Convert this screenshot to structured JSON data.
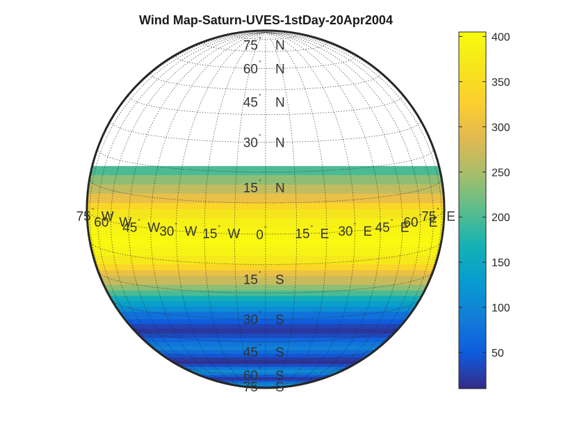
{
  "map": {
    "title": "Wind Map-Saturn-UVES-1stDay-20Apr2004",
    "projection": "orthographic",
    "data_latitude_range_deg": [
      -78,
      22
    ],
    "grid": true,
    "latitude_labels": [
      {
        "value": 75,
        "text": "75",
        "hemi": "N"
      },
      {
        "value": 60,
        "text": "60",
        "hemi": "N"
      },
      {
        "value": 45,
        "text": "45",
        "hemi": "N"
      },
      {
        "value": 30,
        "text": "30",
        "hemi": "N"
      },
      {
        "value": 15,
        "text": "15",
        "hemi": "N"
      },
      {
        "value": -15,
        "text": "15",
        "hemi": "S"
      },
      {
        "value": -30,
        "text": "30",
        "hemi": "S"
      },
      {
        "value": -45,
        "text": "45",
        "hemi": "S"
      },
      {
        "value": -60,
        "text": "60",
        "hemi": "S"
      },
      {
        "value": -75,
        "text": "75",
        "hemi": "S"
      }
    ],
    "longitude_labels": [
      {
        "value": -75,
        "text": "75",
        "hemi": "W"
      },
      {
        "value": -60,
        "text": "60",
        "hemi": "W"
      },
      {
        "value": -45,
        "text": "45",
        "hemi": "W"
      },
      {
        "value": -30,
        "text": "30",
        "hemi": "W"
      },
      {
        "value": -15,
        "text": "15",
        "hemi": "W"
      },
      {
        "value": 0,
        "text": "0",
        "hemi": ""
      },
      {
        "value": 15,
        "text": "15",
        "hemi": "E"
      },
      {
        "value": 30,
        "text": "30",
        "hemi": "E"
      },
      {
        "value": 45,
        "text": "45",
        "hemi": "E"
      },
      {
        "value": 60,
        "text": "60",
        "hemi": "E"
      },
      {
        "value": 75,
        "text": "75",
        "hemi": "E"
      }
    ],
    "wind_profile": [
      {
        "lat": 22,
        "v": 200
      },
      {
        "lat": 19,
        "v": 235
      },
      {
        "lat": 16,
        "v": 265
      },
      {
        "lat": 13,
        "v": 300
      },
      {
        "lat": 10,
        "v": 340
      },
      {
        "lat": 8,
        "v": 365
      },
      {
        "lat": 5,
        "v": 385
      },
      {
        "lat": 2,
        "v": 395
      },
      {
        "lat": -1,
        "v": 400
      },
      {
        "lat": -4,
        "v": 390
      },
      {
        "lat": -7,
        "v": 370
      },
      {
        "lat": -10,
        "v": 340
      },
      {
        "lat": -12,
        "v": 300
      },
      {
        "lat": -14,
        "v": 270
      },
      {
        "lat": -17,
        "v": 235
      },
      {
        "lat": -19,
        "v": 200
      },
      {
        "lat": -21,
        "v": 160
      },
      {
        "lat": -23,
        "v": 135
      },
      {
        "lat": -25,
        "v": 110
      },
      {
        "lat": -27,
        "v": 75
      },
      {
        "lat": -30,
        "v": 50
      },
      {
        "lat": -32,
        "v": 30
      },
      {
        "lat": -34,
        "v": 20
      },
      {
        "lat": -36,
        "v": 35
      },
      {
        "lat": -38,
        "v": 60
      },
      {
        "lat": -40,
        "v": 80
      },
      {
        "lat": -42,
        "v": 95
      },
      {
        "lat": -44,
        "v": 70
      },
      {
        "lat": -46,
        "v": 45
      },
      {
        "lat": -48,
        "v": 25
      },
      {
        "lat": -50,
        "v": 15
      },
      {
        "lat": -52,
        "v": 40
      },
      {
        "lat": -54,
        "v": 80
      },
      {
        "lat": -56,
        "v": 110
      },
      {
        "lat": -58,
        "v": 90
      },
      {
        "lat": -60,
        "v": 50
      },
      {
        "lat": -62,
        "v": 20
      },
      {
        "lat": -64,
        "v": 30
      },
      {
        "lat": -66,
        "v": 60
      },
      {
        "lat": -68,
        "v": 95
      },
      {
        "lat": -70,
        "v": 120
      },
      {
        "lat": -72,
        "v": 90
      },
      {
        "lat": -74,
        "v": 50
      },
      {
        "lat": -76,
        "v": 25
      },
      {
        "lat": -78,
        "v": 20
      }
    ]
  },
  "colorbar": {
    "colormap": "parula",
    "min": 10,
    "max": 405,
    "ticks": [
      50,
      100,
      150,
      200,
      250,
      300,
      350,
      400
    ],
    "tick_labels": [
      "50",
      "100",
      "150",
      "200",
      "250",
      "300",
      "350",
      "400"
    ]
  }
}
